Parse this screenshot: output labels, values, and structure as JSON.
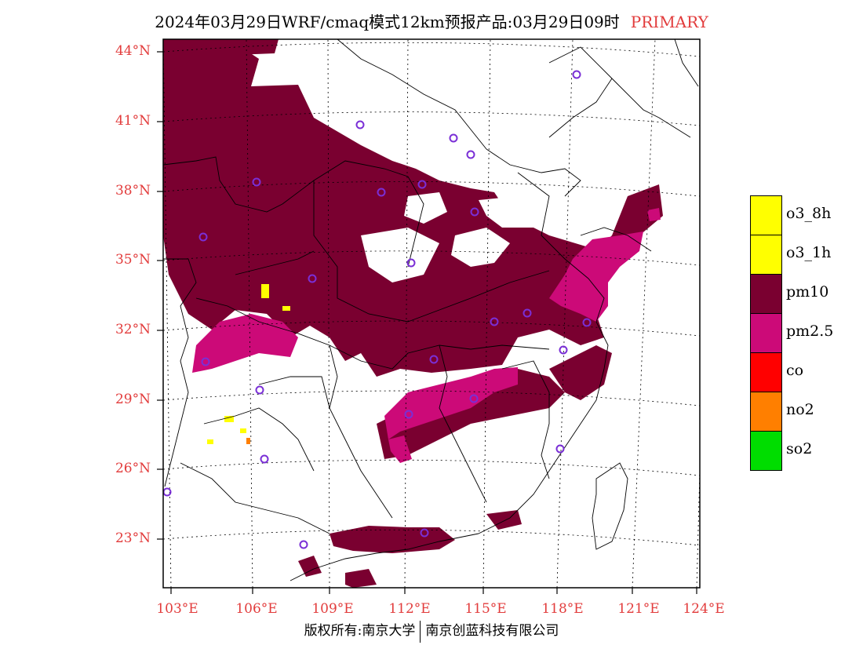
{
  "title": {
    "main": "2024年03月29日WRF/cmaq模式12km预报产品:03月29日09时",
    "tag": "PRIMARY"
  },
  "colors": {
    "pm10": "#7a0030",
    "pm25": "#cc0a78",
    "o3": "#ffff00",
    "co": "#ff0000",
    "no2": "#ff7f00",
    "so2": "#00dd00",
    "label": "#e23c3c",
    "station": "#7a2fd6"
  },
  "axes": {
    "lat_labels": [
      "44°N",
      "41°N",
      "38°N",
      "35°N",
      "32°N",
      "29°N",
      "26°N",
      "23°N"
    ],
    "lon_labels": [
      "103°E",
      "106°E",
      "109°E",
      "112°E",
      "115°E",
      "118°E",
      "121°E",
      "124°E"
    ]
  },
  "legend": [
    {
      "label": "o3_8h",
      "color": "#ffff00"
    },
    {
      "label": "o3_1h",
      "color": "#ffff00"
    },
    {
      "label": "pm10",
      "color": "#7a0030"
    },
    {
      "label": "pm2.5",
      "color": "#cc0a78"
    },
    {
      "label": "co",
      "color": "#ff0000"
    },
    {
      "label": "no2",
      "color": "#ff7f00"
    },
    {
      "label": "so2",
      "color": "#00dd00"
    }
  ],
  "copyright": {
    "left": "版权所有:南京大学",
    "right": "南京创蓝科技有限公司"
  }
}
